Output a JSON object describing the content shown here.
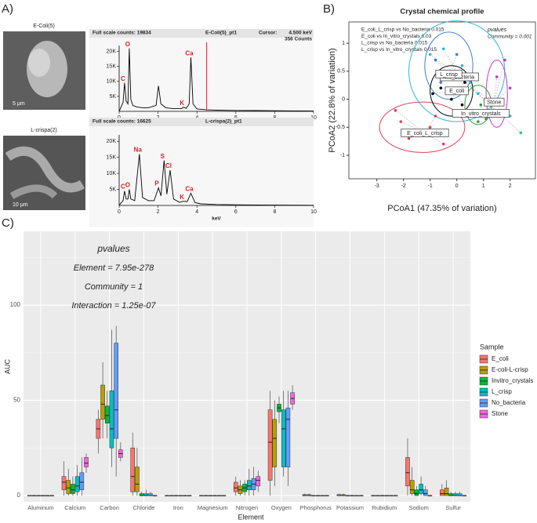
{
  "chart_data": [
    {
      "type": "spectrum",
      "panel_label": "A)",
      "image_label": "E-Coli(5)",
      "scale_bar": "5 μm",
      "header": [
        "Full scale counts: 19834",
        "E-Coli(5)_pt1"
      ],
      "cursor_text": [
        "Cursor:",
        "4.500 keV",
        "356 Counts"
      ],
      "cursor": 4.5,
      "xlabel": "keV",
      "color": "#000000",
      "x": [
        0,
        0.1,
        0.2,
        0.28,
        0.36,
        0.45,
        0.52,
        0.6,
        0.7,
        0.9,
        1.2,
        1.5,
        1.9,
        2.02,
        2.15,
        2.4,
        2.8,
        3.2,
        3.31,
        3.45,
        3.6,
        3.69,
        3.8,
        4.0,
        4.5,
        5,
        6,
        7,
        8,
        9,
        10
      ],
      "values": [
        0,
        1500,
        3000,
        9500,
        3500,
        2500,
        21000,
        4000,
        2000,
        1500,
        1200,
        1200,
        2000,
        8500,
        2500,
        1200,
        900,
        900,
        1400,
        1000,
        2500,
        18000,
        2500,
        800,
        500,
        400,
        300,
        250,
        200,
        150,
        100
      ],
      "xlim": [
        0,
        10
      ],
      "xticks": [
        0,
        2,
        4,
        6,
        8,
        10
      ],
      "ylim": [
        0,
        22000
      ],
      "yticks": [
        {
          "value": 5000,
          "label": "5K"
        },
        {
          "value": 10000,
          "label": "10K"
        },
        {
          "value": 15000,
          "label": "15K"
        },
        {
          "value": 20000,
          "label": "20K"
        }
      ],
      "peaks": [
        {
          "label": "C",
          "x": 0.28,
          "y": 9500
        },
        {
          "label": "O",
          "x": 0.52,
          "y": 21000
        },
        {
          "label": "K",
          "x": 3.31,
          "y": 1400
        },
        {
          "label": "Ca",
          "x": 3.69,
          "y": 18000
        }
      ]
    },
    {
      "type": "spectrum",
      "image_label": "L-crispa(2)",
      "scale_bar": "10 μm",
      "header": [
        "Full scale counts: 16625",
        "L-crispa(2)_pt1"
      ],
      "xlabel": "keV",
      "color": "#000000",
      "x": [
        0,
        0.1,
        0.2,
        0.28,
        0.36,
        0.45,
        0.52,
        0.6,
        0.8,
        1.04,
        1.2,
        1.5,
        1.8,
        2.02,
        2.15,
        2.31,
        2.45,
        2.62,
        2.8,
        3.1,
        3.31,
        3.5,
        3.69,
        3.9,
        4.2,
        5,
        6,
        7,
        8,
        9,
        10
      ],
      "values": [
        0,
        800,
        1500,
        4500,
        2000,
        2000,
        5000,
        2000,
        1500,
        16000,
        2500,
        1500,
        1500,
        5500,
        3000,
        14000,
        3500,
        11000,
        2000,
        1000,
        1300,
        1200,
        3800,
        900,
        500,
        300,
        200,
        150,
        100,
        80,
        50
      ],
      "xlim": [
        0,
        10
      ],
      "xticks": [
        0,
        2,
        4,
        6,
        8,
        10
      ],
      "ylim": [
        0,
        22000
      ],
      "yticks": [
        {
          "value": 5000,
          "label": "5K"
        },
        {
          "value": 10000,
          "label": "10K"
        },
        {
          "value": 15000,
          "label": "15K"
        },
        {
          "value": 20000,
          "label": "20K"
        }
      ],
      "peaks": [
        {
          "label": "C",
          "x": 0.28,
          "y": 4500
        },
        {
          "label": "O",
          "x": 0.52,
          "y": 5000
        },
        {
          "label": "Na",
          "x": 1.04,
          "y": 16000
        },
        {
          "label": "P",
          "x": 2.02,
          "y": 5500
        },
        {
          "label": "S",
          "x": 2.31,
          "y": 14000
        },
        {
          "label": "Cl",
          "x": 2.62,
          "y": 11000
        },
        {
          "label": "K",
          "x": 3.31,
          "y": 1300
        },
        {
          "label": "Ca",
          "x": 3.69,
          "y": 3800
        }
      ]
    },
    {
      "type": "pcoa",
      "panel_label": "B)",
      "title": "Crystal chemical profile",
      "xlabel": "PCoA1 (47.35% of variation)",
      "ylabel": "PCoA2 (22.8% of variation)",
      "comparisons": [
        "E_coli_L_crisp vs No_bacteria 0.015",
        "E_coli vs In_vitro_crystals 0.03",
        "L_crisp vs No_bacteria 0.015",
        "L_crisp vs In_vitro_crystals 0.015"
      ],
      "pvalues": "pvalues",
      "community": "Community = 0.001",
      "xlim": [
        -4.05,
        2.95
      ],
      "xticks": [
        -3,
        -2,
        -1,
        0,
        1,
        2
      ],
      "ylim": [
        -1.42,
        1.38
      ],
      "yticks": [
        -1,
        -0.5,
        0,
        0.5,
        1
      ],
      "series": [
        {
          "name": "E_coli_L_crisp",
          "color": "#e0405a",
          "centroid": [
            -1.2,
            -0.6
          ],
          "ellipse": {
            "cx": -1.3,
            "cy": -0.5,
            "rx": 1.6,
            "ry": 0.45
          },
          "x": [
            -2.1,
            -1.8,
            -1.5,
            -0.8,
            -0.5,
            -2.3,
            -1.0
          ],
          "y": [
            -0.4,
            -0.7,
            -0.55,
            -0.3,
            -0.8,
            -0.2,
            -0.5
          ]
        },
        {
          "name": "No_bacteria",
          "color": "#29b6e0",
          "centroid": [
            0.1,
            0.4
          ],
          "ellipse": {
            "cx": 0.0,
            "cy": 0.5,
            "rx": 1.8,
            "ry": 0.9
          },
          "x": [
            -0.5,
            0.2,
            0.5,
            1.2,
            2.0,
            2.4,
            -1.0,
            0.8
          ],
          "y": [
            0.9,
            0.6,
            0.3,
            -0.1,
            -0.3,
            -0.6,
            0.8,
            0.1
          ]
        },
        {
          "name": "L_crisp",
          "color": "#3a7fd6",
          "centroid": [
            -0.3,
            0.45
          ],
          "ellipse": {
            "cx": -0.3,
            "cy": 0.6,
            "rx": 0.9,
            "ry": 0.6
          },
          "x": [
            -0.8,
            -0.4,
            0.0,
            0.3,
            -0.6
          ],
          "y": [
            0.7,
            0.5,
            0.8,
            0.4,
            0.3
          ]
        },
        {
          "name": "E_coli",
          "color": "#000000",
          "centroid": [
            0.0,
            0.15
          ],
          "ellipse": {
            "cx": -0.2,
            "cy": 0.15,
            "rx": 0.8,
            "ry": 0.45
          },
          "x": [
            -0.6,
            -0.2,
            0.3,
            0.2,
            -0.9
          ],
          "y": [
            0.2,
            0.0,
            0.3,
            -0.1,
            0.1
          ]
        },
        {
          "name": "Stone",
          "color": "#cc33cc",
          "centroid": [
            1.4,
            -0.05
          ],
          "ellipse": {
            "cx": 1.5,
            "cy": 0.1,
            "rx": 0.4,
            "ry": 0.6
          },
          "x": [
            1.2,
            1.5,
            1.8,
            2.0,
            1.3
          ],
          "y": [
            0.0,
            0.4,
            0.7,
            0.2,
            -0.3
          ]
        },
        {
          "name": "In_vitro_crystals",
          "color": "#2a9d3a",
          "centroid": [
            0.9,
            -0.25
          ],
          "ellipse": {
            "cx": 0.8,
            "cy": -0.1,
            "rx": 0.5,
            "ry": 0.35
          },
          "x": [
            0.6,
            0.9,
            1.1,
            0.8
          ],
          "y": [
            -0.2,
            -0.1,
            -0.35,
            -0.4
          ]
        }
      ]
    },
    {
      "type": "box",
      "panel_label": "C)",
      "xlabel": "Element",
      "ylabel": "AUC",
      "legend_title": "Sample",
      "annotations": [
        "pvalues",
        "Element = 7.95e-278",
        "Community = 1",
        "Interaction = 1.25e-07"
      ],
      "categories": [
        "Aluminum",
        "Calcium",
        "Carbon",
        "Chloride",
        "Iron",
        "Magnesium",
        "Nitrogen",
        "Oxygen",
        "Phosphorus",
        "Potassium",
        "Rubidium",
        "Sodium",
        "Sulfur"
      ],
      "ylim": [
        -3.3,
        138.7
      ],
      "yticks": [
        0,
        50,
        100
      ],
      "minor_yticks": [
        25,
        75,
        125
      ],
      "grid": true,
      "series": [
        {
          "name": "E_coli",
          "color": "#f8766d",
          "min": [
            0,
            0,
            22,
            0,
            0,
            0,
            0,
            0,
            0,
            0,
            0,
            0,
            0
          ],
          "q1": [
            0,
            3,
            30,
            2,
            0,
            0,
            2,
            8,
            0,
            0,
            0,
            5,
            0
          ],
          "median": [
            0,
            7,
            35,
            10,
            0,
            0,
            4,
            28,
            0,
            0,
            0,
            12,
            1
          ],
          "q3": [
            0,
            10,
            40,
            25,
            0,
            0,
            7,
            45,
            0.5,
            0.5,
            0,
            20,
            3
          ],
          "max": [
            0,
            18,
            45,
            33,
            0,
            0,
            10,
            55,
            1,
            1,
            0,
            30,
            6
          ]
        },
        {
          "name": "E-coli-L-crisp",
          "color": "#b79f00",
          "min": [
            0,
            0,
            30,
            0,
            0,
            0,
            0,
            5,
            0,
            0,
            0,
            0,
            0
          ],
          "q1": [
            0,
            1,
            40,
            2,
            0,
            0,
            1,
            15,
            0,
            0,
            0,
            1,
            0
          ],
          "median": [
            0,
            4,
            48,
            6,
            0,
            0,
            3,
            30,
            0,
            0,
            0,
            3,
            1
          ],
          "q3": [
            0,
            8,
            58,
            15,
            0,
            0,
            5,
            40,
            0.5,
            0.5,
            0,
            8,
            4
          ],
          "max": [
            0,
            14,
            70,
            25,
            0,
            0,
            8,
            50,
            1,
            1,
            0,
            15,
            8
          ]
        },
        {
          "name": "Invitro_crystals",
          "color": "#00ba38",
          "min": [
            0,
            0,
            30,
            0,
            0,
            0,
            0,
            38,
            0,
            0,
            0,
            0,
            0
          ],
          "q1": [
            0,
            1,
            38,
            0,
            0,
            0,
            2,
            44,
            0,
            0,
            0,
            0,
            0
          ],
          "median": [
            0,
            3,
            42,
            0,
            0,
            0,
            4,
            46,
            0,
            0,
            0,
            1,
            0
          ],
          "q3": [
            0,
            6,
            47,
            1,
            0,
            0,
            6,
            48,
            0,
            0,
            0,
            3,
            1
          ],
          "max": [
            0,
            10,
            55,
            2,
            0,
            0,
            8,
            52,
            0,
            0,
            0,
            5,
            2
          ]
        },
        {
          "name": "L_crisp",
          "color": "#00bfc4",
          "min": [
            0,
            0,
            15,
            0,
            0,
            0,
            0,
            10,
            0,
            0,
            0,
            0,
            0
          ],
          "q1": [
            0,
            2,
            25,
            0,
            0,
            0,
            3,
            15,
            0,
            0,
            0,
            1,
            0
          ],
          "median": [
            0,
            5,
            35,
            0,
            0,
            0,
            5,
            35,
            0,
            0,
            0,
            3,
            0
          ],
          "q3": [
            0,
            10,
            55,
            1,
            0,
            0,
            8,
            45,
            0,
            0,
            0,
            6,
            1
          ],
          "max": [
            0,
            16,
            87,
            3,
            0,
            0,
            14,
            55,
            0,
            0,
            0,
            10,
            2
          ]
        },
        {
          "name": "No_bacteria",
          "color": "#619cff",
          "min": [
            0,
            0,
            10,
            0,
            0,
            0,
            0,
            5,
            0,
            0,
            0,
            0,
            0
          ],
          "q1": [
            0,
            3,
            30,
            0,
            0,
            0,
            3,
            15,
            0,
            0,
            0,
            0,
            0
          ],
          "median": [
            0,
            7,
            45,
            0,
            0,
            0,
            6,
            40,
            0,
            0,
            0,
            1,
            0
          ],
          "q3": [
            0,
            12,
            80,
            1,
            0,
            0,
            9,
            46,
            0,
            0,
            0,
            3,
            1
          ],
          "max": [
            0,
            20,
            89,
            2,
            0,
            0,
            15,
            55,
            0,
            0,
            0,
            5,
            2
          ]
        },
        {
          "name": "Stone",
          "color": "#f564e3",
          "min": [
            0,
            12,
            18,
            0,
            0,
            0,
            2,
            45,
            0,
            0,
            0,
            0,
            0
          ],
          "q1": [
            0,
            15,
            20,
            0,
            0,
            0,
            5,
            48,
            0,
            0,
            0,
            0,
            0
          ],
          "median": [
            0,
            17,
            22,
            0,
            0,
            0,
            8,
            51,
            0,
            0,
            0,
            0,
            0
          ],
          "q3": [
            0,
            20,
            24,
            0,
            0,
            0,
            10,
            54,
            0,
            0,
            0,
            0,
            0
          ],
          "max": [
            0,
            22,
            28,
            0,
            0,
            0,
            13,
            58,
            0,
            0,
            0,
            0,
            0
          ]
        }
      ]
    }
  ]
}
